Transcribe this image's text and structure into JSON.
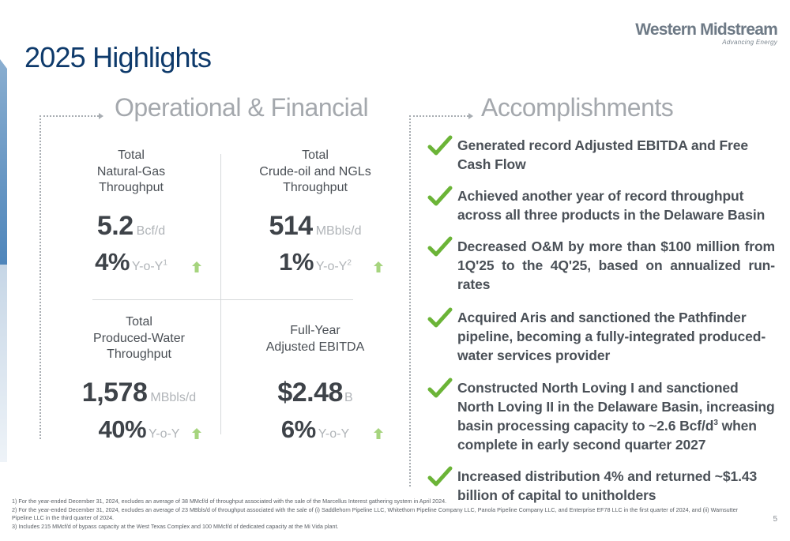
{
  "page": {
    "title": "2025 Highlights",
    "number": "5"
  },
  "logo": {
    "name": "Western Midstream",
    "tagline": "Advancing Energy"
  },
  "colors": {
    "title_blue": "#0e3a6b",
    "check_green": "#6bb437",
    "arrow_green": "#a6d47e",
    "gray_text": "#4a4f55",
    "section_gray": "#a4a8ad"
  },
  "sections": {
    "left": "Operational & Financial",
    "right": "Accomplishments"
  },
  "metrics": [
    {
      "label_lines": [
        "Total",
        "Natural-Gas",
        "Throughput"
      ],
      "value": "5.2",
      "unit": "Bcf/d",
      "pct": "4%",
      "yoy": "Y-o-Y",
      "sup": "1",
      "icon": "up-arrow-icon"
    },
    {
      "label_lines": [
        "Total",
        "Crude-oil and NGLs",
        "Throughput"
      ],
      "value": "514",
      "unit": "MBbls/d",
      "pct": "1%",
      "yoy": "Y-o-Y",
      "sup": "2",
      "icon": "up-arrow-icon"
    },
    {
      "label_lines": [
        "Total",
        "Produced-Water",
        "Throughput"
      ],
      "value": "1,578",
      "unit": "MBbls/d",
      "pct": "40%",
      "yoy": "Y-o-Y",
      "sup": "",
      "icon": "up-arrow-icon"
    },
    {
      "label_lines": [
        "Full-Year",
        "Adjusted EBITDA"
      ],
      "value": "$2.48",
      "unit": "B",
      "pct": "6%",
      "yoy": "Y-o-Y",
      "sup": "",
      "icon": "up-arrow-icon"
    }
  ],
  "accomplishments": [
    {
      "text": "Generated record Adjusted EBITDA and Free Cash Flow"
    },
    {
      "text": "Achieved another year of record throughput across all three products in the Delaware Basin"
    },
    {
      "text": "Decreased O&M by more than $100 million from 1Q'25 to the 4Q'25, based on annualized run-rates"
    },
    {
      "text": "Acquired Aris and sanctioned the Pathfinder pipeline, becoming a fully-integrated produced-water services provider"
    },
    {
      "text_before": "Constructed North Loving I and sanctioned North Loving II in the Delaware Basin, increasing basin processing capacity to ~2.6 Bcf/d",
      "sup": "3",
      "text_after": " when complete in early second quarter 2027"
    },
    {
      "text": "Increased distribution 4% and returned ~$1.43 billion of capital to unitholders"
    }
  ],
  "footnotes": [
    "1)  For the year-ended December 31, 2024, excludes an average of 38 MMcf/d of throughput associated with the sale of the Marcellus Interest gathering system in April 2024.",
    "2)  For the year-ended December 31, 2024, excludes an average of 23 MBbls/d of throughput associated with the sale of (i) Saddlehorn Pipeline LLC, Whitethorn Pipeline Company LLC, Panola Pipeline Company LLC, and Enterprise EF78 LLC in the first quarter of 2024, and (ii) Wamsutter Pipeline LLC in the third quarter of 2024.",
    "3)  Includes 215 MMcf/d of bypass capacity at the West Texas Complex and 100 MMcf/d of dedicated capacity at the Mi Vida plant."
  ]
}
